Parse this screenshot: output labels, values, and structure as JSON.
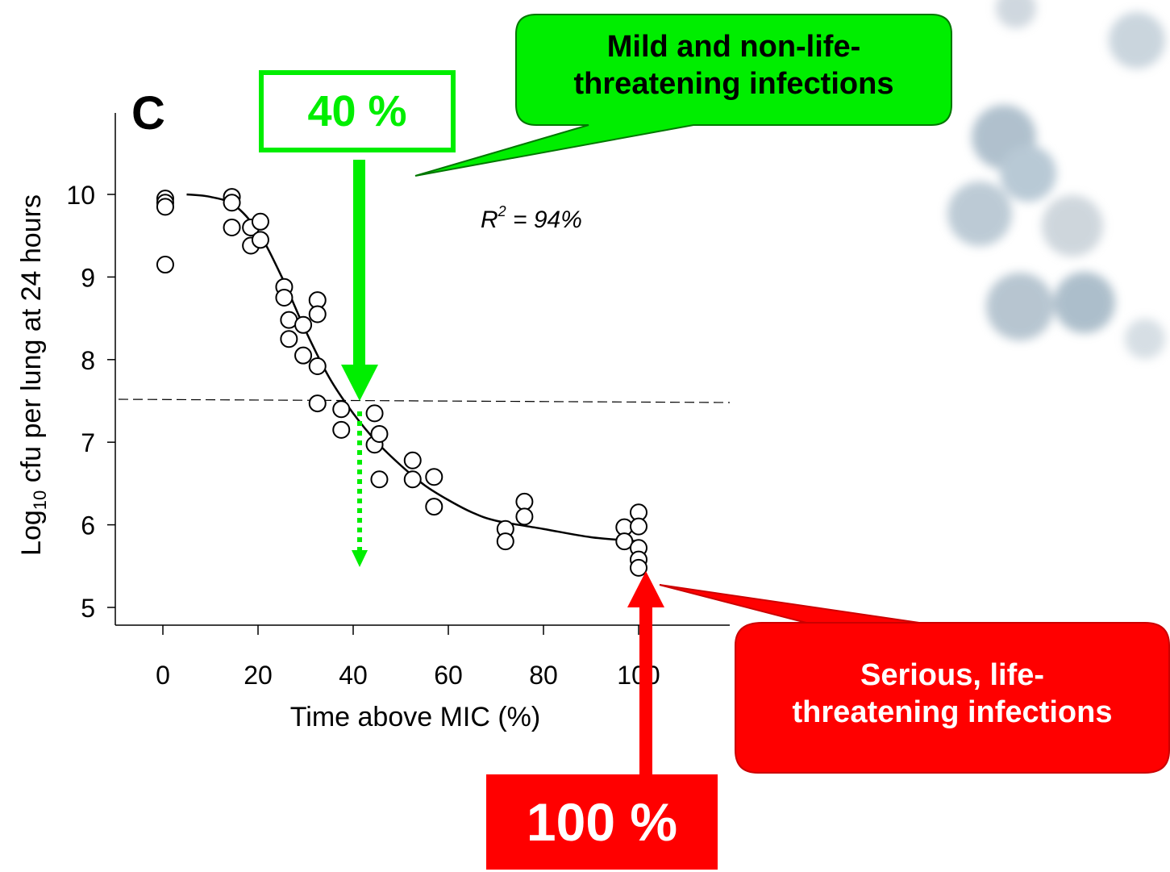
{
  "panel_label": "C",
  "r_squared": {
    "base": "R",
    "exponent": "2",
    "value_text": " = 94%"
  },
  "callouts": {
    "mild": {
      "line1": "Mild and non-life-",
      "line2": "threatening infections"
    },
    "serious": {
      "line1": "Serious, life-",
      "line2": "threatening infections"
    },
    "pct40": "40 %",
    "pct100": "100 %"
  },
  "colors": {
    "green": "#00ee00",
    "red": "#ff0000",
    "border_red": "#cc0000"
  },
  "chart_data": {
    "type": "scatter",
    "xlabel": "Time above MIC (%)",
    "ylabel": {
      "prefix": "Log",
      "subscript": "10",
      "suffix": " cfu per lung at 24 hours"
    },
    "xlim": [
      -10,
      120
    ],
    "ylim": [
      4.8,
      10.5
    ],
    "xticks": [
      0,
      20,
      40,
      60,
      80,
      100
    ],
    "yticks": [
      5,
      6,
      7,
      8,
      9,
      10
    ],
    "threshold_y": 7.5,
    "markers": {
      "green_x": 41,
      "red_x": 100
    },
    "points": [
      [
        0.5,
        9.95
      ],
      [
        0.5,
        9.9
      ],
      [
        0.5,
        9.85
      ],
      [
        0.5,
        9.15
      ],
      [
        14.5,
        9.97
      ],
      [
        14.5,
        9.9
      ],
      [
        14.5,
        9.6
      ],
      [
        18.5,
        9.6
      ],
      [
        18.5,
        9.38
      ],
      [
        20.5,
        9.67
      ],
      [
        20.5,
        9.45
      ],
      [
        25.5,
        8.88
      ],
      [
        25.5,
        8.75
      ],
      [
        26.5,
        8.48
      ],
      [
        26.5,
        8.25
      ],
      [
        29.5,
        8.42
      ],
      [
        29.5,
        8.05
      ],
      [
        32.5,
        8.72
      ],
      [
        32.5,
        8.55
      ],
      [
        32.5,
        7.92
      ],
      [
        32.5,
        7.47
      ],
      [
        37.5,
        7.4
      ],
      [
        37.5,
        7.15
      ],
      [
        44.5,
        7.35
      ],
      [
        44.5,
        6.97
      ],
      [
        45.5,
        7.1
      ],
      [
        45.5,
        6.55
      ],
      [
        52.5,
        6.78
      ],
      [
        52.5,
        6.55
      ],
      [
        57,
        6.58
      ],
      [
        57,
        6.22
      ],
      [
        72,
        5.95
      ],
      [
        72,
        5.8
      ],
      [
        76,
        6.28
      ],
      [
        76,
        6.1
      ],
      [
        97,
        5.97
      ],
      [
        97,
        5.8
      ],
      [
        100,
        6.15
      ],
      [
        100,
        5.98
      ],
      [
        100,
        5.72
      ],
      [
        100,
        5.58
      ],
      [
        100,
        5.48
      ]
    ],
    "fit_curve": [
      [
        5,
        10.0
      ],
      [
        10,
        9.97
      ],
      [
        15,
        9.87
      ],
      [
        20,
        9.55
      ],
      [
        25,
        9.0
      ],
      [
        30,
        8.35
      ],
      [
        35,
        7.78
      ],
      [
        40,
        7.35
      ],
      [
        45,
        7.0
      ],
      [
        50,
        6.72
      ],
      [
        55,
        6.48
      ],
      [
        60,
        6.3
      ],
      [
        65,
        6.15
      ],
      [
        70,
        6.05
      ],
      [
        80,
        5.95
      ],
      [
        90,
        5.85
      ],
      [
        100,
        5.8
      ]
    ]
  }
}
